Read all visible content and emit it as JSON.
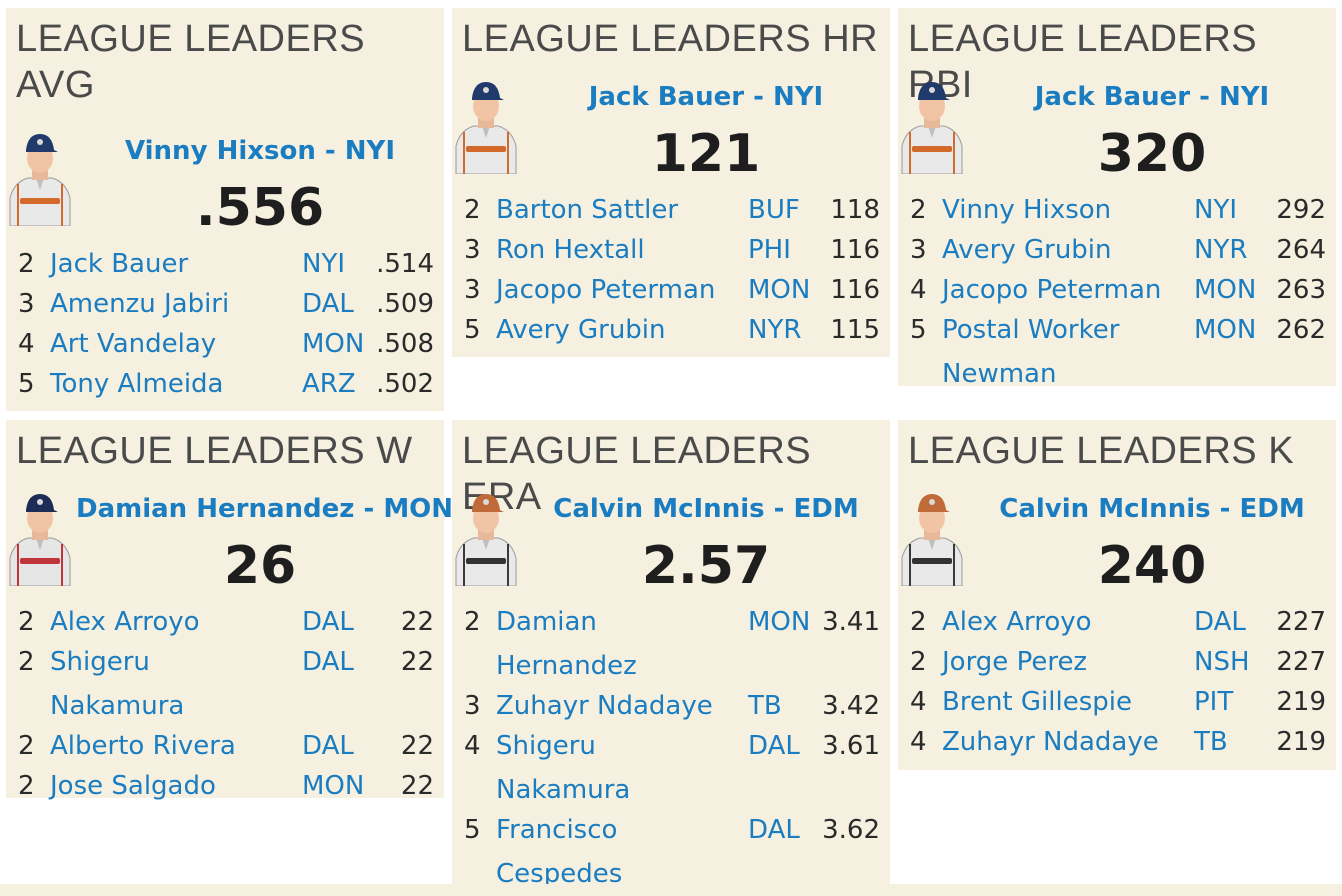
{
  "panels": [
    {
      "title": "LEAGUE LEADERS AVG",
      "leader": "Vinny Hixson",
      "leader_sep": " - ",
      "leader_team": "NYI",
      "value": ".556",
      "uniform": "white-orange",
      "rows": [
        {
          "rank": "2",
          "name": "Jack Bauer",
          "name2": "",
          "team": "NYI",
          "value": ".514"
        },
        {
          "rank": "3",
          "name": "Amenzu Jabiri",
          "name2": "",
          "team": "DAL",
          "value": ".509"
        },
        {
          "rank": "4",
          "name": "Art Vandelay",
          "name2": "",
          "team": "MON",
          "value": ".508"
        },
        {
          "rank": "5",
          "name": "Tony Almeida",
          "name2": "",
          "team": "ARZ",
          "value": ".502"
        }
      ]
    },
    {
      "title": "LEAGUE LEADERS HR",
      "leader": "Jack Bauer",
      "leader_sep": " - ",
      "leader_team": "NYI",
      "value": "121",
      "rows": [
        {
          "rank": "2",
          "name": "Barton Sattler",
          "name2": "",
          "team": "BUF",
          "value": "118"
        },
        {
          "rank": "3",
          "name": "Ron Hextall",
          "name2": "",
          "team": "PHI",
          "value": "116"
        },
        {
          "rank": "3",
          "name": "Jacopo Peterman",
          "name2": "",
          "team": "MON",
          "value": "116"
        },
        {
          "rank": "5",
          "name": "Avery Grubin",
          "name2": "",
          "team": "NYR",
          "value": "115"
        }
      ]
    },
    {
      "title": "LEAGUE LEADERS RBI",
      "leader": "Jack Bauer",
      "leader_sep": " - ",
      "leader_team": "NYI",
      "value": "320",
      "rows": [
        {
          "rank": "2",
          "name": "Vinny Hixson",
          "name2": "",
          "team": "NYI",
          "value": "292"
        },
        {
          "rank": "3",
          "name": "Avery Grubin",
          "name2": "",
          "team": "NYR",
          "value": "264"
        },
        {
          "rank": "4",
          "name": "Jacopo Peterman",
          "name2": "",
          "team": "MON",
          "value": "263"
        },
        {
          "rank": "5",
          "name": "Postal Worker",
          "name2": "Newman",
          "team": "MON",
          "value": "262"
        }
      ]
    },
    {
      "title": "LEAGUE LEADERS W",
      "leader": "Damian Hernandez",
      "leader_sep": " - ",
      "leader_team": "MON",
      "value": "26",
      "rows": [
        {
          "rank": "2",
          "name": "Alex Arroyo",
          "name2": "",
          "team": "DAL",
          "value": "22"
        },
        {
          "rank": "2",
          "name": "Shigeru",
          "name2": "Nakamura",
          "team": "DAL",
          "value": "22"
        },
        {
          "rank": "2",
          "name": "Alberto Rivera",
          "name2": "",
          "team": "DAL",
          "value": "22"
        },
        {
          "rank": "2",
          "name": "Jose Salgado",
          "name2": "",
          "team": "MON",
          "value": "22"
        }
      ]
    },
    {
      "title": "LEAGUE LEADERS ERA",
      "leader": "Calvin McInnis",
      "leader_sep": " - ",
      "leader_team": "EDM",
      "value": "2.57",
      "rows": [
        {
          "rank": "2",
          "name": "Damian",
          "name2": "Hernandez",
          "team": "MON",
          "value": "3.41"
        },
        {
          "rank": "3",
          "name": "Zuhayr Ndadaye",
          "name2": "",
          "team": "TB",
          "value": "3.42"
        },
        {
          "rank": "4",
          "name": "Shigeru",
          "name2": "Nakamura",
          "team": "DAL",
          "value": "3.61"
        },
        {
          "rank": "5",
          "name": "Francisco",
          "name2": "Cespedes",
          "team": "DAL",
          "value": "3.62"
        }
      ]
    },
    {
      "title": "LEAGUE LEADERS K",
      "leader": "Calvin McInnis",
      "leader_sep": " - ",
      "leader_team": "EDM",
      "value": "240",
      "rows": [
        {
          "rank": "2",
          "name": "Alex Arroyo",
          "name2": "",
          "team": "DAL",
          "value": "227"
        },
        {
          "rank": "2",
          "name": "Jorge Perez",
          "name2": "",
          "team": "NSH",
          "value": "227"
        },
        {
          "rank": "4",
          "name": "Brent Gillespie",
          "name2": "",
          "team": "PIT",
          "value": "219"
        },
        {
          "rank": "4",
          "name": "Zuhayr Ndadaye",
          "name2": "",
          "team": "TB",
          "value": "219"
        }
      ]
    }
  ],
  "colors": {
    "panel_bg": "#f5f0df",
    "link": "#1a7cc1",
    "text": "#2a2a2a"
  },
  "icons": {
    "player_photo": "player-photo-icon"
  }
}
